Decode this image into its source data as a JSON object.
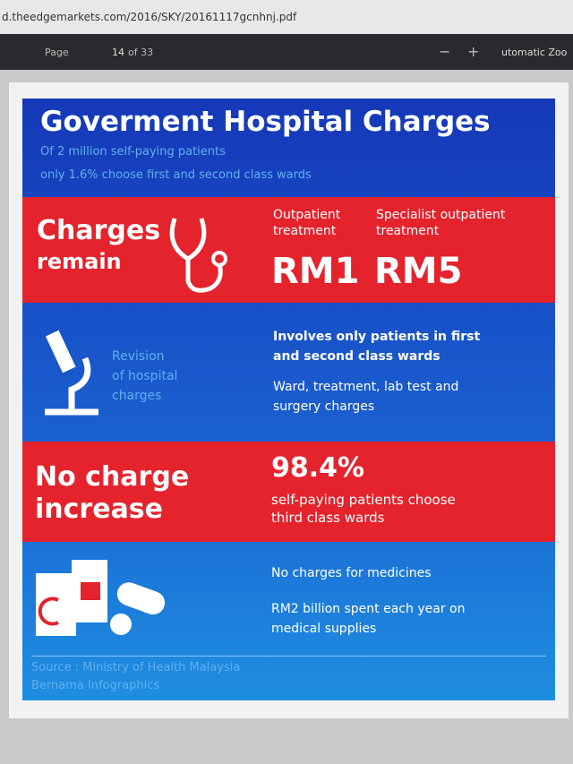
{
  "browser": {
    "url": "d.theedgemarkets.com/2016/SKY/20161117gcnhnj.pdf",
    "page_label": "Page",
    "page_number": "14",
    "page_count": "of 33",
    "zoom_out": "−",
    "zoom_in": "+",
    "zoom": "utomatic Zoo"
  },
  "infographic": {
    "title": "Goverment Hospital Charges",
    "subtitle": [
      "Of 2 million self-paying patients",
      "only 1.6% choose first and second class wards"
    ],
    "charges": {
      "heading": [
        "Charges",
        "remain"
      ],
      "items": [
        {
          "label": [
            "Outpatient",
            "treatment"
          ],
          "value": "RM1"
        },
        {
          "label": [
            "Specialist outpatient",
            "treatment"
          ],
          "value": "RM5"
        }
      ]
    },
    "revision": {
      "label": [
        "Revision",
        "of hospital",
        "charges"
      ],
      "bold": [
        "Involves only patients in first",
        "and second class wards"
      ],
      "detail": [
        "Ward, treatment, lab test and",
        "surgery charges"
      ]
    },
    "no_increase": {
      "heading": [
        "No charge",
        "increase"
      ],
      "value": "98.4%",
      "detail": [
        "self-paying patients choose",
        "third class wards"
      ]
    },
    "medicine": {
      "lines": [
        "No charges for medicines"
      ],
      "detail": [
        "RM2 billion spent each year on",
        "medical supplies"
      ]
    },
    "source": [
      "Source : Ministry of Health Malaysia",
      "Bernama Infographics"
    ]
  }
}
